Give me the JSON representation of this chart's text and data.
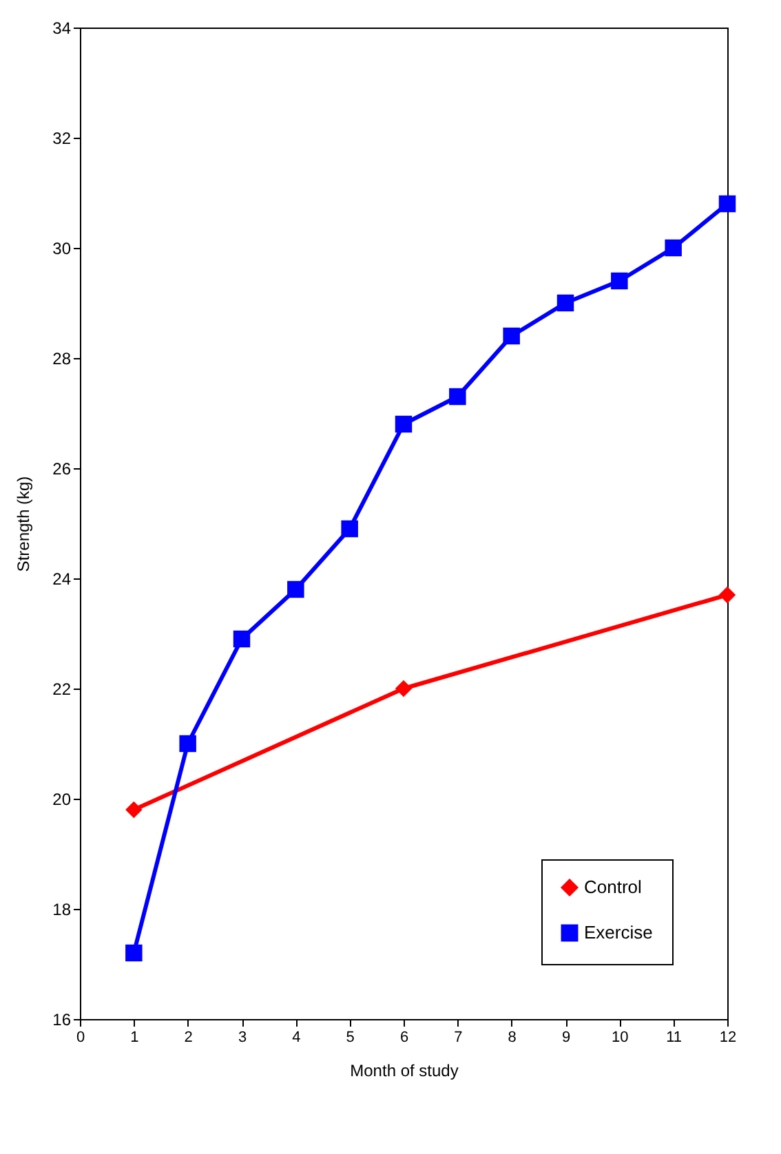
{
  "chart_data": {
    "type": "line",
    "xlabel": "Month of study",
    "ylabel": "Strength (kg)",
    "xlim": [
      0,
      12
    ],
    "xticks": [
      0,
      1,
      2,
      3,
      4,
      5,
      6,
      7,
      8,
      9,
      10,
      11,
      12
    ],
    "ylim": [
      16,
      34
    ],
    "yticks": [
      16,
      18,
      20,
      22,
      24,
      26,
      28,
      30,
      32,
      34
    ],
    "grid": false,
    "legend": "bottom right",
    "line_style": "solid",
    "series": [
      {
        "name": "Control",
        "color": "#ff0000",
        "marker": "diamond",
        "x": [
          1,
          6,
          12
        ],
        "values": [
          19.8,
          22.0,
          23.7
        ]
      },
      {
        "name": "Exercise",
        "color": "#0000ff",
        "marker": "square",
        "x": [
          1,
          2,
          3,
          4,
          5,
          6,
          7,
          8,
          9,
          10,
          11,
          12
        ],
        "values": [
          17.2,
          21.0,
          22.9,
          23.8,
          24.9,
          26.8,
          27.3,
          28.4,
          29.0,
          29.4,
          30.0,
          30.8
        ]
      }
    ]
  }
}
